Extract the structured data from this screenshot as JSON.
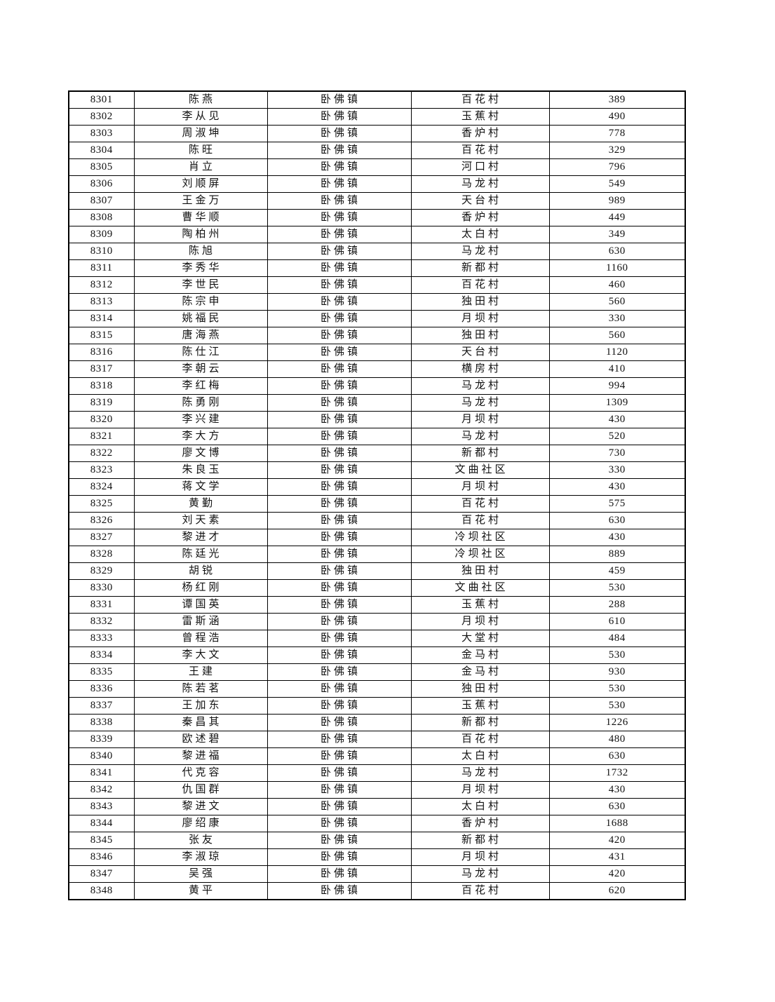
{
  "page": {
    "background": "#ffffff",
    "text_color": "#111111",
    "border_color": "#000000"
  },
  "table": {
    "columns": [
      "id",
      "name",
      "town",
      "village",
      "amount"
    ],
    "rows": [
      [
        "8301",
        "陈燕",
        "卧佛镇",
        "百花村",
        "389"
      ],
      [
        "8302",
        "李从见",
        "卧佛镇",
        "玉蕉村",
        "490"
      ],
      [
        "8303",
        "周淑坤",
        "卧佛镇",
        "香炉村",
        "778"
      ],
      [
        "8304",
        "陈旺",
        "卧佛镇",
        "百花村",
        "329"
      ],
      [
        "8305",
        "肖立",
        "卧佛镇",
        "河口村",
        "796"
      ],
      [
        "8306",
        "刘顺屏",
        "卧佛镇",
        "马龙村",
        "549"
      ],
      [
        "8307",
        "王金万",
        "卧佛镇",
        "天台村",
        "989"
      ],
      [
        "8308",
        "曹华顺",
        "卧佛镇",
        "香炉村",
        "449"
      ],
      [
        "8309",
        "陶柏州",
        "卧佛镇",
        "太白村",
        "349"
      ],
      [
        "8310",
        "陈旭",
        "卧佛镇",
        "马龙村",
        "630"
      ],
      [
        "8311",
        "李秀华",
        "卧佛镇",
        "新都村",
        "1160"
      ],
      [
        "8312",
        "李世民",
        "卧佛镇",
        "百花村",
        "460"
      ],
      [
        "8313",
        "陈宗申",
        "卧佛镇",
        "独田村",
        "560"
      ],
      [
        "8314",
        "姚福民",
        "卧佛镇",
        "月坝村",
        "330"
      ],
      [
        "8315",
        "唐海燕",
        "卧佛镇",
        "独田村",
        "560"
      ],
      [
        "8316",
        "陈仕江",
        "卧佛镇",
        "天台村",
        "1120"
      ],
      [
        "8317",
        "李朝云",
        "卧佛镇",
        "横房村",
        "410"
      ],
      [
        "8318",
        "李红梅",
        "卧佛镇",
        "马龙村",
        "994"
      ],
      [
        "8319",
        "陈勇刚",
        "卧佛镇",
        "马龙村",
        "1309"
      ],
      [
        "8320",
        "李兴建",
        "卧佛镇",
        "月坝村",
        "430"
      ],
      [
        "8321",
        "李大方",
        "卧佛镇",
        "马龙村",
        "520"
      ],
      [
        "8322",
        "廖文博",
        "卧佛镇",
        "新都村",
        "730"
      ],
      [
        "8323",
        "朱良玉",
        "卧佛镇",
        "文曲社区",
        "330"
      ],
      [
        "8324",
        "蒋文学",
        "卧佛镇",
        "月坝村",
        "430"
      ],
      [
        "8325",
        "黄勤",
        "卧佛镇",
        "百花村",
        "575"
      ],
      [
        "8326",
        "刘天素",
        "卧佛镇",
        "百花村",
        "630"
      ],
      [
        "8327",
        "黎进才",
        "卧佛镇",
        "冷坝社区",
        "430"
      ],
      [
        "8328",
        "陈廷光",
        "卧佛镇",
        "冷坝社区",
        "889"
      ],
      [
        "8329",
        "胡锐",
        "卧佛镇",
        "独田村",
        "459"
      ],
      [
        "8330",
        "杨红刚",
        "卧佛镇",
        "文曲社区",
        "530"
      ],
      [
        "8331",
        "谭国英",
        "卧佛镇",
        "玉蕉村",
        "288"
      ],
      [
        "8332",
        "雷斯涵",
        "卧佛镇",
        "月坝村",
        "610"
      ],
      [
        "8333",
        "曾程浩",
        "卧佛镇",
        "大堂村",
        "484"
      ],
      [
        "8334",
        "李大文",
        "卧佛镇",
        "金马村",
        "530"
      ],
      [
        "8335",
        "王建",
        "卧佛镇",
        "金马村",
        "930"
      ],
      [
        "8336",
        "陈若茗",
        "卧佛镇",
        "独田村",
        "530"
      ],
      [
        "8337",
        "王加东",
        "卧佛镇",
        "玉蕉村",
        "530"
      ],
      [
        "8338",
        "秦昌其",
        "卧佛镇",
        "新都村",
        "1226"
      ],
      [
        "8339",
        "欧述碧",
        "卧佛镇",
        "百花村",
        "480"
      ],
      [
        "8340",
        "黎进福",
        "卧佛镇",
        "太白村",
        "630"
      ],
      [
        "8341",
        "代克容",
        "卧佛镇",
        "马龙村",
        "1732"
      ],
      [
        "8342",
        "仇国群",
        "卧佛镇",
        "月坝村",
        "430"
      ],
      [
        "8343",
        "黎进文",
        "卧佛镇",
        "太白村",
        "630"
      ],
      [
        "8344",
        "廖绍康",
        "卧佛镇",
        "香炉村",
        "1688"
      ],
      [
        "8345",
        "张友",
        "卧佛镇",
        "新都村",
        "420"
      ],
      [
        "8346",
        "李淑琼",
        "卧佛镇",
        "月坝村",
        "431"
      ],
      [
        "8347",
        "吴强",
        "卧佛镇",
        "马龙村",
        "420"
      ],
      [
        "8348",
        "黄平",
        "卧佛镇",
        "百花村",
        "620"
      ]
    ]
  }
}
